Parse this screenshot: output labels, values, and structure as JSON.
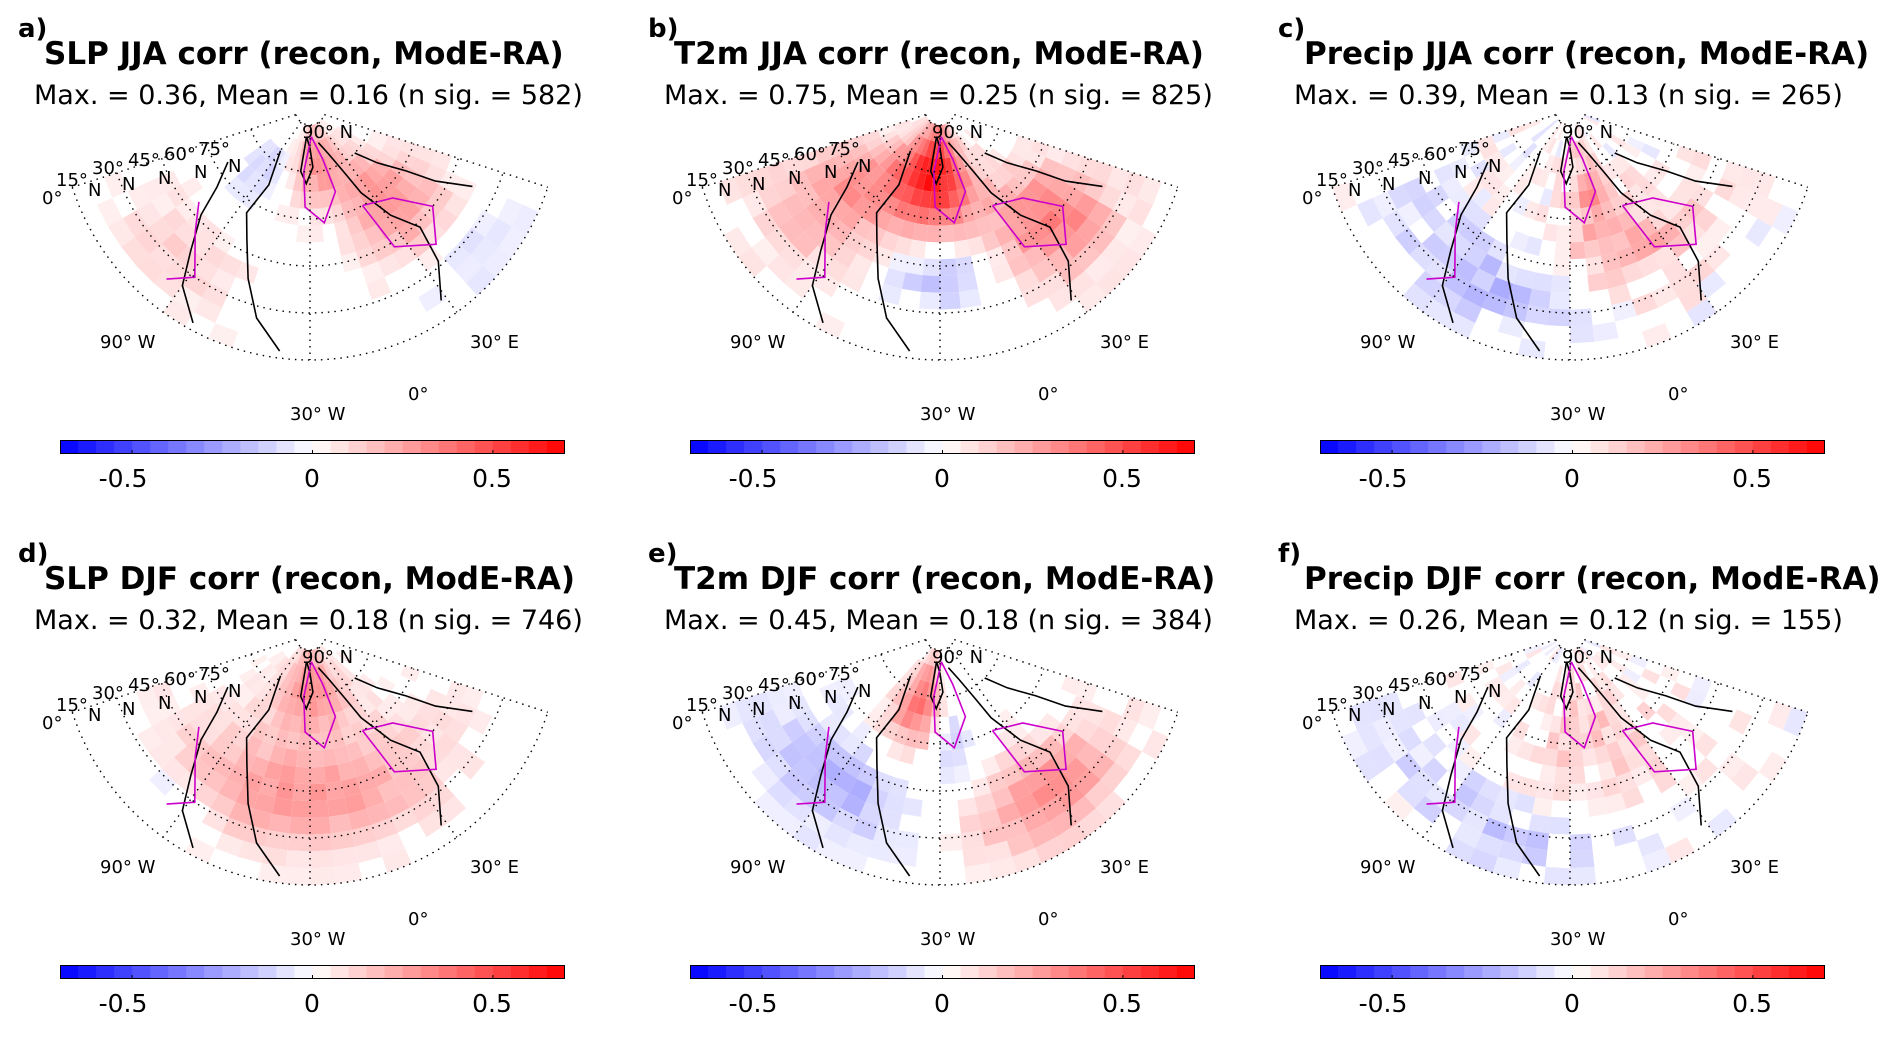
{
  "panels": [
    {
      "id": "a",
      "letter": "a)",
      "title": "SLP JJA corr (recon, ModE-RA)",
      "subtitle": "Max. = 0.36, Mean = 0.16 (n sig. = 582)",
      "max": 0.36,
      "mean": 0.16,
      "n_sig": 582
    },
    {
      "id": "b",
      "letter": "b)",
      "title": "T2m JJA corr (recon, ModE-RA)",
      "subtitle": "Max. = 0.75, Mean = 0.25 (n sig. = 825)",
      "max": 0.75,
      "mean": 0.25,
      "n_sig": 825
    },
    {
      "id": "c",
      "letter": "c)",
      "title": "Precip JJA corr (recon, ModE-RA)",
      "subtitle": "Max. = 0.39, Mean = 0.13 (n sig. = 265)",
      "max": 0.39,
      "mean": 0.13,
      "n_sig": 265
    },
    {
      "id": "d",
      "letter": "d)",
      "title": "SLP DJF corr (recon, ModE-RA)",
      "subtitle": "Max. = 0.32, Mean = 0.18 (n sig. = 746)",
      "max": 0.32,
      "mean": 0.18,
      "n_sig": 746
    },
    {
      "id": "e",
      "letter": "e)",
      "title": "T2m DJF corr (recon, ModE-RA)",
      "subtitle": "Max. = 0.45, Mean = 0.18 (n sig. = 384)",
      "max": 0.45,
      "mean": 0.18,
      "n_sig": 384
    },
    {
      "id": "f",
      "letter": "f)",
      "title": "Precip DJF corr (recon, ModE-RA)",
      "subtitle": "Max. = 0.26, Mean = 0.12 (n sig. = 155)",
      "max": 0.26,
      "mean": 0.12,
      "n_sig": 155
    }
  ],
  "map_labels": {
    "north_pole": "90° N",
    "lat_75": "75°",
    "lat_60": "60°",
    "lat_45": "45°",
    "lat_30": "30°",
    "lat_15": "15°",
    "lat_0": "0°",
    "n_suffix": "N",
    "lon_90w": "90° W",
    "lon_30w": "30° W",
    "lon_0": "0°",
    "lon_30e": "30° E"
  },
  "colorbar": {
    "ticks": [
      {
        "value": -0.5,
        "label": "-0.5"
      },
      {
        "value": 0,
        "label": "0"
      },
      {
        "value": 0.5,
        "label": "0.5"
      }
    ],
    "range": [
      -0.7,
      0.7
    ],
    "n_levels": 28,
    "negative_color": "#0000ff",
    "positive_color": "#ff0000",
    "neutral_color": "#ffffff"
  },
  "colors": {
    "contour": "#cc00cc",
    "coast": "#000000",
    "grid": "#000000"
  }
}
